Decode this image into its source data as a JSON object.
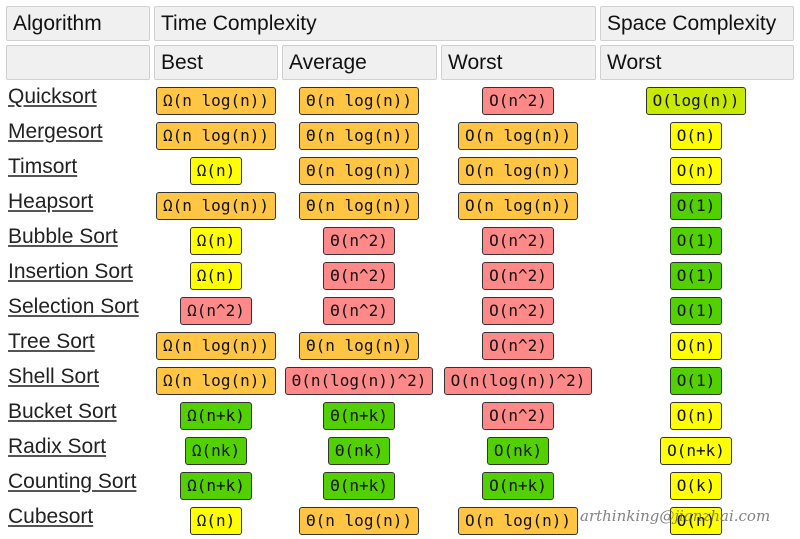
{
  "colors": {
    "green": "#53d000",
    "lime": "#c8ea00",
    "yellow": "#ffff00",
    "orange": "#ffc543",
    "red": "#ff8989"
  },
  "header": {
    "algorithm": "Algorithm",
    "time_complexity": "Time Complexity",
    "space_complexity": "Space Complexity",
    "best": "Best",
    "average": "Average",
    "worst": "Worst",
    "space_worst": "Worst"
  },
  "rows": [
    {
      "name": "Quicksort",
      "best": {
        "text": "Ω(n log(n))",
        "rating": "orange"
      },
      "average": {
        "text": "Θ(n log(n))",
        "rating": "orange"
      },
      "worst": {
        "text": "O(n^2)",
        "rating": "red"
      },
      "space": {
        "text": "O(log(n))",
        "rating": "lime"
      }
    },
    {
      "name": "Mergesort",
      "best": {
        "text": "Ω(n log(n))",
        "rating": "orange"
      },
      "average": {
        "text": "Θ(n log(n))",
        "rating": "orange"
      },
      "worst": {
        "text": "O(n log(n))",
        "rating": "orange"
      },
      "space": {
        "text": "O(n)",
        "rating": "yellow"
      }
    },
    {
      "name": "Timsort",
      "best": {
        "text": "Ω(n)",
        "rating": "yellow"
      },
      "average": {
        "text": "Θ(n log(n))",
        "rating": "orange"
      },
      "worst": {
        "text": "O(n log(n))",
        "rating": "orange"
      },
      "space": {
        "text": "O(n)",
        "rating": "yellow"
      }
    },
    {
      "name": "Heapsort",
      "best": {
        "text": "Ω(n log(n))",
        "rating": "orange"
      },
      "average": {
        "text": "Θ(n log(n))",
        "rating": "orange"
      },
      "worst": {
        "text": "O(n log(n))",
        "rating": "orange"
      },
      "space": {
        "text": "O(1)",
        "rating": "green"
      }
    },
    {
      "name": "Bubble Sort",
      "best": {
        "text": "Ω(n)",
        "rating": "yellow"
      },
      "average": {
        "text": "Θ(n^2)",
        "rating": "red"
      },
      "worst": {
        "text": "O(n^2)",
        "rating": "red"
      },
      "space": {
        "text": "O(1)",
        "rating": "green"
      }
    },
    {
      "name": "Insertion Sort",
      "best": {
        "text": "Ω(n)",
        "rating": "yellow"
      },
      "average": {
        "text": "Θ(n^2)",
        "rating": "red"
      },
      "worst": {
        "text": "O(n^2)",
        "rating": "red"
      },
      "space": {
        "text": "O(1)",
        "rating": "green"
      }
    },
    {
      "name": "Selection Sort",
      "best": {
        "text": "Ω(n^2)",
        "rating": "red"
      },
      "average": {
        "text": "Θ(n^2)",
        "rating": "red"
      },
      "worst": {
        "text": "O(n^2)",
        "rating": "red"
      },
      "space": {
        "text": "O(1)",
        "rating": "green"
      }
    },
    {
      "name": "Tree Sort",
      "best": {
        "text": "Ω(n log(n))",
        "rating": "orange"
      },
      "average": {
        "text": "Θ(n log(n))",
        "rating": "orange"
      },
      "worst": {
        "text": "O(n^2)",
        "rating": "red"
      },
      "space": {
        "text": "O(n)",
        "rating": "yellow"
      }
    },
    {
      "name": "Shell Sort",
      "best": {
        "text": "Ω(n log(n))",
        "rating": "orange"
      },
      "average": {
        "text": "Θ(n(log(n))^2)",
        "rating": "red"
      },
      "worst": {
        "text": "O(n(log(n))^2)",
        "rating": "red"
      },
      "space": {
        "text": "O(1)",
        "rating": "green"
      }
    },
    {
      "name": "Bucket Sort",
      "best": {
        "text": "Ω(n+k)",
        "rating": "green"
      },
      "average": {
        "text": "Θ(n+k)",
        "rating": "green"
      },
      "worst": {
        "text": "O(n^2)",
        "rating": "red"
      },
      "space": {
        "text": "O(n)",
        "rating": "yellow"
      }
    },
    {
      "name": "Radix Sort",
      "best": {
        "text": "Ω(nk)",
        "rating": "green"
      },
      "average": {
        "text": "Θ(nk)",
        "rating": "green"
      },
      "worst": {
        "text": "O(nk)",
        "rating": "green"
      },
      "space": {
        "text": "O(n+k)",
        "rating": "yellow"
      }
    },
    {
      "name": "Counting Sort",
      "best": {
        "text": "Ω(n+k)",
        "rating": "green"
      },
      "average": {
        "text": "Θ(n+k)",
        "rating": "green"
      },
      "worst": {
        "text": "O(n+k)",
        "rating": "green"
      },
      "space": {
        "text": "O(k)",
        "rating": "yellow"
      }
    },
    {
      "name": "Cubesort",
      "best": {
        "text": "Ω(n)",
        "rating": "yellow"
      },
      "average": {
        "text": "Θ(n log(n))",
        "rating": "orange"
      },
      "worst": {
        "text": "O(n log(n))",
        "rating": "orange"
      },
      "space": {
        "text": "O(n)",
        "rating": "yellow"
      }
    }
  ],
  "watermark": "arthinking@jianzhai.com"
}
